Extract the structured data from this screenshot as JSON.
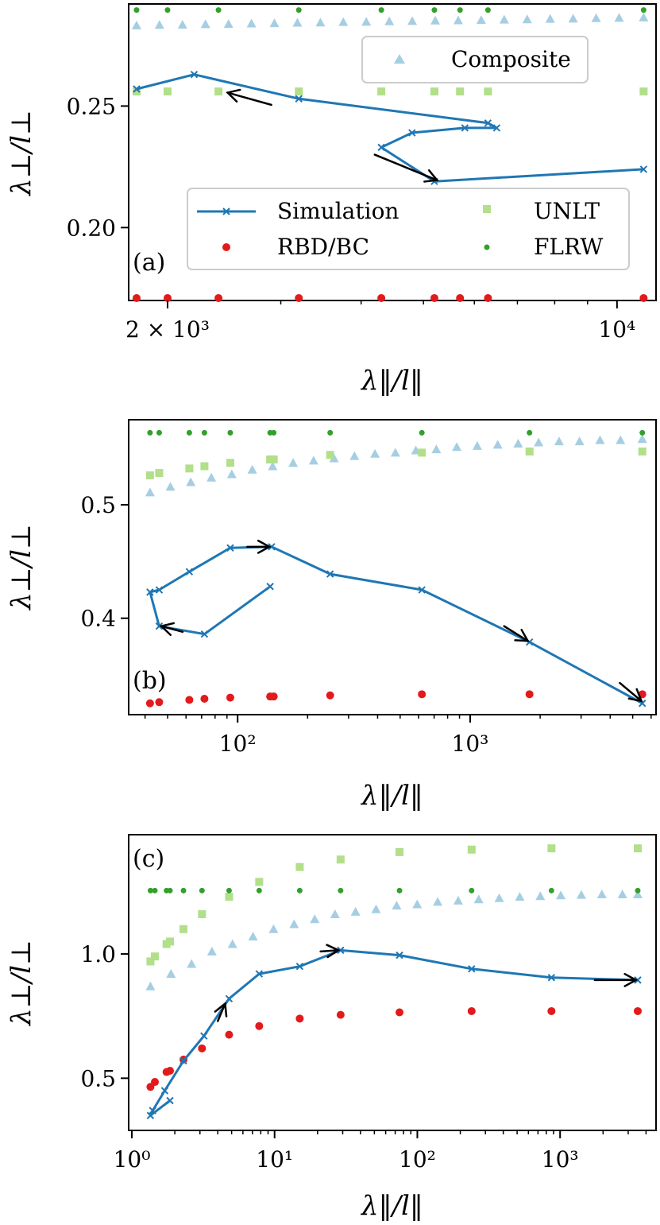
{
  "colors": {
    "simulation": "#1f77b4",
    "rbd_bc": "#e31a1c",
    "unlt": "#b2df8a",
    "flrw": "#33a02c",
    "composite": "#a6cee3",
    "arrow": "#000000",
    "legend_border": "#cccccc"
  },
  "legend": {
    "simulation": "Simulation",
    "rbd_bc": "RBD/BC",
    "unlt": "UNLT",
    "flrw": "FLRW",
    "composite": "Composite"
  },
  "chart_data": [
    {
      "id": "a",
      "type": "scatter",
      "panel_label": "(a)",
      "xscale": "log",
      "xlabel": "λ‖/l‖",
      "ylabel": "λ⊥/l⊥",
      "xlim": [
        1740,
        11500
      ],
      "ylim": [
        0.17,
        0.292
      ],
      "xticks": [
        {
          "value": 2000,
          "label": "2 × 10³"
        },
        {
          "value": 10000,
          "label": "10⁴"
        }
      ],
      "xminor": [
        3000,
        4000,
        5000,
        6000,
        7000,
        8000,
        9000
      ],
      "yticks": [
        {
          "value": 0.2,
          "label": "0.20"
        },
        {
          "value": 0.25,
          "label": "0.25"
        }
      ],
      "legend_position": "center-right",
      "extra_legend_position": "top-right",
      "series": [
        {
          "name": "Simulation",
          "style": "line",
          "x": [
            11000,
            5200,
            4300,
            4800,
            5800,
            6500,
            6300,
            3200,
            2200,
            1790
          ],
          "y": [
            0.224,
            0.219,
            0.233,
            0.239,
            0.241,
            0.241,
            0.243,
            0.253,
            0.263,
            0.257
          ]
        },
        {
          "name": "RBD/BC",
          "style": "circle",
          "x": [
            1790,
            2000,
            2400,
            3200,
            4300,
            5200,
            5700,
            6300,
            11000
          ],
          "y": [
            0.171,
            0.171,
            0.171,
            0.171,
            0.171,
            0.171,
            0.171,
            0.171,
            0.171
          ]
        },
        {
          "name": "UNLT",
          "style": "square",
          "x": [
            1790,
            2000,
            2400,
            3200,
            4300,
            5200,
            5700,
            6300,
            11000
          ],
          "y": [
            0.256,
            0.256,
            0.256,
            0.256,
            0.256,
            0.256,
            0.256,
            0.256,
            0.256
          ]
        },
        {
          "name": "FLRW",
          "style": "dot",
          "x": [
            1790,
            2000,
            2400,
            3200,
            4300,
            5200,
            5700,
            6300,
            11000
          ],
          "y": [
            0.2895,
            0.2895,
            0.2895,
            0.2895,
            0.2895,
            0.2895,
            0.2895,
            0.2895,
            0.2895
          ]
        },
        {
          "name": "Composite",
          "style": "triangle",
          "x": [
            1790,
            1943,
            2110,
            2291,
            2488,
            2701,
            2932,
            3184,
            3457,
            3753,
            4075,
            4425,
            4804,
            5216,
            5664,
            6149,
            6677,
            7250,
            7872,
            8547,
            9280,
            10076,
            11000
          ],
          "y": [
            0.2832,
            0.2834,
            0.2835,
            0.2837,
            0.2838,
            0.284,
            0.2841,
            0.2843,
            0.2844,
            0.2846,
            0.2847,
            0.2849,
            0.285,
            0.2852,
            0.2853,
            0.2854,
            0.2856,
            0.2857,
            0.2859,
            0.286,
            0.2862,
            0.2863,
            0.2865
          ]
        }
      ],
      "arrows": [
        {
          "x": [
            4200,
            5250
          ],
          "y": [
            0.23,
            0.2195
          ]
        },
        {
          "x": [
            2900,
            2480
          ],
          "y": [
            0.2505,
            0.2555
          ]
        }
      ]
    },
    {
      "id": "b",
      "type": "scatter",
      "panel_label": "(b)",
      "xscale": "log",
      "xlabel": "λ‖/l‖",
      "ylabel": "λ⊥/l⊥",
      "xlim": [
        34,
        6300
      ],
      "ylim": [
        0.315,
        0.575
      ],
      "xticks": [
        {
          "value": 100,
          "label": "10²"
        },
        {
          "value": 1000,
          "label": "10³"
        }
      ],
      "xminor": [
        40,
        50,
        60,
        70,
        80,
        90,
        200,
        300,
        400,
        500,
        600,
        700,
        800,
        900,
        2000,
        3000,
        4000,
        5000,
        6000
      ],
      "yticks": [
        {
          "value": 0.4,
          "label": "0.4"
        },
        {
          "value": 0.5,
          "label": "0.5"
        }
      ],
      "series": [
        {
          "name": "Simulation",
          "style": "line",
          "x": [
            5500,
            1800,
            620,
            250,
            140,
            93,
            62,
            46,
            42,
            46,
            72,
            138
          ],
          "y": [
            0.325,
            0.379,
            0.425,
            0.439,
            0.463,
            0.462,
            0.441,
            0.425,
            0.423,
            0.393,
            0.386,
            0.428
          ]
        },
        {
          "name": "RBD/BC",
          "style": "circle",
          "x": [
            42,
            46,
            62,
            72,
            93,
            138,
            143,
            250,
            620,
            1800,
            5500
          ],
          "y": [
            0.325,
            0.326,
            0.328,
            0.329,
            0.33,
            0.331,
            0.331,
            0.332,
            0.333,
            0.333,
            0.333
          ]
        },
        {
          "name": "UNLT",
          "style": "square",
          "x": [
            42,
            46,
            62,
            72,
            93,
            138,
            143,
            250,
            620,
            1800,
            5500
          ],
          "y": [
            0.526,
            0.528,
            0.532,
            0.534,
            0.537,
            0.54,
            0.54,
            0.544,
            0.546,
            0.547,
            0.547
          ]
        },
        {
          "name": "FLRW",
          "style": "dot",
          "x": [
            42,
            46,
            62,
            72,
            93,
            138,
            143,
            250,
            620,
            1800,
            5500
          ],
          "y": [
            0.5635,
            0.5635,
            0.5635,
            0.5635,
            0.5635,
            0.5635,
            0.5635,
            0.5635,
            0.5635,
            0.5635,
            0.5635
          ]
        },
        {
          "name": "Composite",
          "style": "triangle",
          "x": [
            42,
            51.4,
            62.9,
            77.1,
            94.4,
            115.6,
            141.5,
            173.3,
            212.2,
            259.8,
            318.1,
            389.6,
            477.0,
            584.1,
            715.3,
            876.0,
            1072.7,
            1313.7,
            1608.7,
            1970.0,
            2412.4,
            2954.3,
            3617.8,
            4430.4,
            5500
          ],
          "y": [
            0.511,
            0.516,
            0.52,
            0.524,
            0.527,
            0.531,
            0.534,
            0.537,
            0.539,
            0.541,
            0.543,
            0.545,
            0.546,
            0.548,
            0.549,
            0.551,
            0.552,
            0.553,
            0.554,
            0.555,
            0.556,
            0.556,
            0.557,
            0.557,
            0.558
          ]
        }
      ],
      "arrows": [
        {
          "x": [
            4400,
            5450
          ],
          "y": [
            0.343,
            0.327
          ]
        },
        {
          "x": [
            1400,
            1770
          ],
          "y": [
            0.393,
            0.38
          ]
        },
        {
          "x": [
            110,
            137
          ],
          "y": [
            0.463,
            0.463
          ]
        },
        {
          "x": [
            58,
            47
          ],
          "y": [
            0.388,
            0.393
          ]
        }
      ]
    },
    {
      "id": "c",
      "type": "scatter",
      "panel_label": "(c)",
      "xscale": "log",
      "xlabel": "λ‖/l‖",
      "ylabel": "λ⊥/l⊥",
      "xlim": [
        0.95,
        4700
      ],
      "ylim": [
        0.29,
        1.48
      ],
      "xticks": [
        {
          "value": 1,
          "label": "10⁰"
        },
        {
          "value": 10,
          "label": "10¹"
        },
        {
          "value": 100,
          "label": "10²"
        },
        {
          "value": 1000,
          "label": "10³"
        }
      ],
      "xminor": [
        2,
        3,
        4,
        5,
        6,
        7,
        8,
        9,
        20,
        30,
        40,
        50,
        60,
        70,
        80,
        90,
        200,
        300,
        400,
        500,
        600,
        700,
        800,
        900,
        2000,
        3000,
        4000
      ],
      "yticks": [
        {
          "value": 0.5,
          "label": "0.5"
        },
        {
          "value": 1.0,
          "label": "1.0"
        }
      ],
      "series": [
        {
          "name": "Simulation",
          "style": "line",
          "x": [
            1.85,
            1.35,
            1.4,
            1.7,
            2.3,
            3.2,
            4.8,
            7.8,
            15,
            29,
            75,
            240,
            870,
            3500
          ],
          "y": [
            0.41,
            0.35,
            0.37,
            0.45,
            0.57,
            0.67,
            0.82,
            0.92,
            0.95,
            1.015,
            0.995,
            0.94,
            0.905,
            0.895
          ]
        },
        {
          "name": "RBD/BC",
          "style": "circle",
          "x": [
            1.35,
            1.45,
            1.75,
            1.85,
            2.3,
            3.1,
            4.8,
            7.8,
            15,
            29,
            75,
            240,
            870,
            3500
          ],
          "y": [
            0.465,
            0.485,
            0.525,
            0.53,
            0.575,
            0.62,
            0.675,
            0.71,
            0.74,
            0.755,
            0.765,
            0.77,
            0.77,
            0.77
          ]
        },
        {
          "name": "UNLT",
          "style": "square",
          "x": [
            1.35,
            1.45,
            1.75,
            1.85,
            2.3,
            3.1,
            4.8,
            7.8,
            15,
            29,
            75,
            240,
            870,
            3500
          ],
          "y": [
            0.97,
            0.99,
            1.04,
            1.05,
            1.1,
            1.16,
            1.23,
            1.29,
            1.35,
            1.38,
            1.41,
            1.42,
            1.425,
            1.425
          ]
        },
        {
          "name": "FLRW",
          "style": "dot",
          "x": [
            1.35,
            1.45,
            1.75,
            1.85,
            2.3,
            3.1,
            4.8,
            7.8,
            15,
            29,
            75,
            240,
            870,
            3500
          ],
          "y": [
            1.255,
            1.255,
            1.255,
            1.255,
            1.255,
            1.255,
            1.255,
            1.255,
            1.255,
            1.255,
            1.255,
            1.255,
            1.255,
            1.255
          ]
        },
        {
          "name": "Composite",
          "style": "triangle",
          "x": [
            1.35,
            1.88,
            2.62,
            3.64,
            5.07,
            7.06,
            9.83,
            13.7,
            19.1,
            26.5,
            36.9,
            51.4,
            71.6,
            99.7,
            138.8,
            193.3,
            269.1,
            374.8,
            521.8,
            726.7,
            1011.9,
            1409.1,
            1962.2,
            2732.5,
            3500
          ],
          "y": [
            0.87,
            0.92,
            0.96,
            1.01,
            1.04,
            1.07,
            1.1,
            1.12,
            1.14,
            1.16,
            1.17,
            1.18,
            1.195,
            1.2,
            1.21,
            1.215,
            1.22,
            1.225,
            1.23,
            1.233,
            1.236,
            1.238,
            1.24,
            1.24,
            1.24
          ]
        }
      ],
      "arrows": [
        {
          "x": [
            4.0,
            4.5
          ],
          "y": [
            0.73,
            0.8
          ]
        },
        {
          "x": [
            21,
            28
          ],
          "y": [
            1.01,
            1.015
          ]
        },
        {
          "x": [
            1750,
            3400
          ],
          "y": [
            0.895,
            0.895
          ]
        }
      ]
    }
  ]
}
